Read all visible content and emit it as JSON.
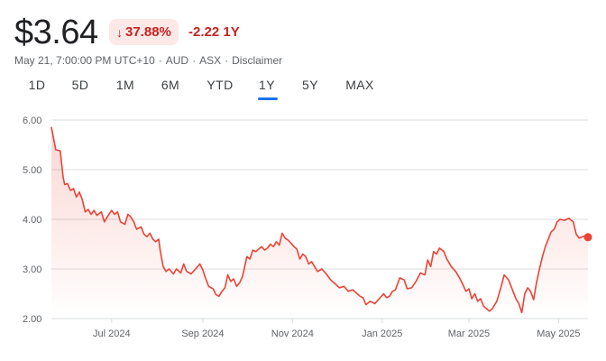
{
  "header": {
    "price": "$3.64",
    "change_percent": "37.88%",
    "change_direction": "down",
    "change_abs": "-2.22 1Y",
    "meta": {
      "timestamp": "May 21, 7:00:00 PM UTC+10",
      "currency": "AUD",
      "exchange": "ASX",
      "disclaimer": "Disclaimer"
    }
  },
  "tabs": [
    {
      "label": "1D",
      "active": false
    },
    {
      "label": "5D",
      "active": false
    },
    {
      "label": "1M",
      "active": false
    },
    {
      "label": "6M",
      "active": false
    },
    {
      "label": "YTD",
      "active": false
    },
    {
      "label": "1Y",
      "active": true
    },
    {
      "label": "5Y",
      "active": false
    },
    {
      "label": "MAX",
      "active": false
    }
  ],
  "colors": {
    "line": "#ea4335",
    "negative": "#c5221f",
    "badge_bg": "#fce8e6",
    "active_tab": "#1a73e8",
    "grid": "#dadce0"
  },
  "chart_data": {
    "type": "area",
    "ylim": [
      2.0,
      6.0
    ],
    "yticks": [
      6.0,
      5.0,
      4.0,
      3.0,
      2.0
    ],
    "ytick_labels": [
      "6.00",
      "5.00",
      "4.00",
      "3.00",
      "2.00"
    ],
    "xlim": [
      "2024-05-21",
      "2025-05-21"
    ],
    "xticks": [
      {
        "date": "2024-07-01",
        "label": "Jul 2024"
      },
      {
        "date": "2024-09-01",
        "label": "Sep 2024"
      },
      {
        "date": "2024-11-01",
        "label": "Nov 2024"
      },
      {
        "date": "2025-01-01",
        "label": "Jan 2025"
      },
      {
        "date": "2025-03-01",
        "label": "Mar 2025"
      },
      {
        "date": "2025-05-01",
        "label": "May 2025"
      }
    ],
    "grid": "horizontal",
    "series": [
      {
        "points": [
          [
            "2024-05-21",
            5.85
          ],
          [
            "2024-05-23",
            5.55
          ],
          [
            "2024-05-24",
            5.4
          ],
          [
            "2024-05-27",
            5.38
          ],
          [
            "2024-05-29",
            4.85
          ],
          [
            "2024-05-30",
            4.7
          ],
          [
            "2024-06-01",
            4.72
          ],
          [
            "2024-06-03",
            4.58
          ],
          [
            "2024-06-05",
            4.62
          ],
          [
            "2024-06-07",
            4.45
          ],
          [
            "2024-06-09",
            4.55
          ],
          [
            "2024-06-11",
            4.4
          ],
          [
            "2024-06-13",
            4.15
          ],
          [
            "2024-06-15",
            4.2
          ],
          [
            "2024-06-17",
            4.1
          ],
          [
            "2024-06-19",
            4.18
          ],
          [
            "2024-06-21",
            4.08
          ],
          [
            "2024-06-24",
            4.15
          ],
          [
            "2024-06-26",
            3.95
          ],
          [
            "2024-06-28",
            4.05
          ],
          [
            "2024-07-01",
            4.18
          ],
          [
            "2024-07-03",
            4.1
          ],
          [
            "2024-07-05",
            4.15
          ],
          [
            "2024-07-07",
            3.95
          ],
          [
            "2024-07-10",
            3.9
          ],
          [
            "2024-07-12",
            4.1
          ],
          [
            "2024-07-14",
            4.05
          ],
          [
            "2024-07-16",
            3.95
          ],
          [
            "2024-07-18",
            3.8
          ],
          [
            "2024-07-21",
            3.85
          ],
          [
            "2024-07-23",
            3.7
          ],
          [
            "2024-07-25",
            3.65
          ],
          [
            "2024-07-27",
            3.72
          ],
          [
            "2024-07-29",
            3.6
          ],
          [
            "2024-07-31",
            3.55
          ],
          [
            "2024-08-02",
            3.6
          ],
          [
            "2024-08-03",
            3.38
          ],
          [
            "2024-08-05",
            3.05
          ],
          [
            "2024-08-07",
            2.95
          ],
          [
            "2024-08-09",
            3.0
          ],
          [
            "2024-08-12",
            2.9
          ],
          [
            "2024-08-14",
            3.0
          ],
          [
            "2024-08-17",
            2.92
          ],
          [
            "2024-08-19",
            3.1
          ],
          [
            "2024-08-21",
            2.95
          ],
          [
            "2024-08-24",
            2.9
          ],
          [
            "2024-08-27",
            3.0
          ],
          [
            "2024-08-30",
            3.1
          ],
          [
            "2024-09-01",
            2.98
          ],
          [
            "2024-09-03",
            2.8
          ],
          [
            "2024-09-05",
            2.65
          ],
          [
            "2024-09-08",
            2.6
          ],
          [
            "2024-09-10",
            2.48
          ],
          [
            "2024-09-12",
            2.45
          ],
          [
            "2024-09-14",
            2.55
          ],
          [
            "2024-09-16",
            2.62
          ],
          [
            "2024-09-18",
            2.88
          ],
          [
            "2024-09-20",
            2.75
          ],
          [
            "2024-09-22",
            2.8
          ],
          [
            "2024-09-24",
            2.65
          ],
          [
            "2024-09-26",
            2.72
          ],
          [
            "2024-09-28",
            2.85
          ],
          [
            "2024-10-01",
            3.25
          ],
          [
            "2024-10-03",
            3.2
          ],
          [
            "2024-10-05",
            3.38
          ],
          [
            "2024-10-07",
            3.35
          ],
          [
            "2024-10-09",
            3.4
          ],
          [
            "2024-10-11",
            3.45
          ],
          [
            "2024-10-13",
            3.38
          ],
          [
            "2024-10-15",
            3.42
          ],
          [
            "2024-10-17",
            3.5
          ],
          [
            "2024-10-19",
            3.45
          ],
          [
            "2024-10-21",
            3.55
          ],
          [
            "2024-10-23",
            3.48
          ],
          [
            "2024-10-25",
            3.72
          ],
          [
            "2024-10-27",
            3.62
          ],
          [
            "2024-10-29",
            3.58
          ],
          [
            "2024-10-31",
            3.52
          ],
          [
            "2024-11-02",
            3.45
          ],
          [
            "2024-11-04",
            3.4
          ],
          [
            "2024-11-06",
            3.2
          ],
          [
            "2024-11-08",
            3.3
          ],
          [
            "2024-11-10",
            3.25
          ],
          [
            "2024-11-12",
            3.1
          ],
          [
            "2024-11-14",
            3.15
          ],
          [
            "2024-11-16",
            3.05
          ],
          [
            "2024-11-18",
            2.95
          ],
          [
            "2024-11-21",
            3.0
          ],
          [
            "2024-11-24",
            2.9
          ],
          [
            "2024-11-27",
            2.78
          ],
          [
            "2024-11-30",
            2.7
          ],
          [
            "2024-12-03",
            2.62
          ],
          [
            "2024-12-06",
            2.65
          ],
          [
            "2024-12-09",
            2.55
          ],
          [
            "2024-12-12",
            2.58
          ],
          [
            "2024-12-15",
            2.5
          ],
          [
            "2024-12-17",
            2.45
          ],
          [
            "2024-12-19",
            2.42
          ],
          [
            "2024-12-21",
            2.28
          ],
          [
            "2024-12-24",
            2.35
          ],
          [
            "2024-12-27",
            2.3
          ],
          [
            "2024-12-30",
            2.4
          ],
          [
            "2025-01-02",
            2.5
          ],
          [
            "2025-01-04",
            2.42
          ],
          [
            "2025-01-06",
            2.45
          ],
          [
            "2025-01-08",
            2.55
          ],
          [
            "2025-01-10",
            2.58
          ],
          [
            "2025-01-13",
            2.82
          ],
          [
            "2025-01-16",
            2.78
          ],
          [
            "2025-01-18",
            2.6
          ],
          [
            "2025-01-21",
            2.62
          ],
          [
            "2025-01-24",
            2.75
          ],
          [
            "2025-01-27",
            2.92
          ],
          [
            "2025-01-30",
            2.88
          ],
          [
            "2025-02-01",
            3.18
          ],
          [
            "2025-02-03",
            3.05
          ],
          [
            "2025-02-05",
            3.35
          ],
          [
            "2025-02-07",
            3.3
          ],
          [
            "2025-02-09",
            3.42
          ],
          [
            "2025-02-12",
            3.35
          ],
          [
            "2025-02-14",
            3.2
          ],
          [
            "2025-02-17",
            3.05
          ],
          [
            "2025-02-20",
            2.95
          ],
          [
            "2025-02-23",
            2.8
          ],
          [
            "2025-02-25",
            2.68
          ],
          [
            "2025-02-27",
            2.55
          ],
          [
            "2025-03-01",
            2.6
          ],
          [
            "2025-03-03",
            2.4
          ],
          [
            "2025-03-05",
            2.5
          ],
          [
            "2025-03-07",
            2.35
          ],
          [
            "2025-03-09",
            2.4
          ],
          [
            "2025-03-11",
            2.25
          ],
          [
            "2025-03-13",
            2.2
          ],
          [
            "2025-03-15",
            2.15
          ],
          [
            "2025-03-17",
            2.2
          ],
          [
            "2025-03-20",
            2.35
          ],
          [
            "2025-03-23",
            2.65
          ],
          [
            "2025-03-25",
            2.88
          ],
          [
            "2025-03-28",
            2.78
          ],
          [
            "2025-03-31",
            2.55
          ],
          [
            "2025-04-02",
            2.4
          ],
          [
            "2025-04-04",
            2.3
          ],
          [
            "2025-04-06",
            2.12
          ],
          [
            "2025-04-08",
            2.5
          ],
          [
            "2025-04-10",
            2.62
          ],
          [
            "2025-04-12",
            2.55
          ],
          [
            "2025-04-14",
            2.38
          ],
          [
            "2025-04-16",
            2.72
          ],
          [
            "2025-04-18",
            3.0
          ],
          [
            "2025-04-20",
            3.25
          ],
          [
            "2025-04-22",
            3.45
          ],
          [
            "2025-04-24",
            3.6
          ],
          [
            "2025-04-26",
            3.75
          ],
          [
            "2025-04-28",
            3.8
          ],
          [
            "2025-04-30",
            3.95
          ],
          [
            "2025-05-02",
            4.0
          ],
          [
            "2025-05-05",
            3.98
          ],
          [
            "2025-05-08",
            4.02
          ],
          [
            "2025-05-11",
            3.95
          ],
          [
            "2025-05-13",
            3.7
          ],
          [
            "2025-05-15",
            3.62
          ],
          [
            "2025-05-18",
            3.66
          ],
          [
            "2025-05-21",
            3.64
          ]
        ]
      }
    ],
    "last_point": {
      "date": "2025-05-21",
      "value": 3.64
    }
  }
}
